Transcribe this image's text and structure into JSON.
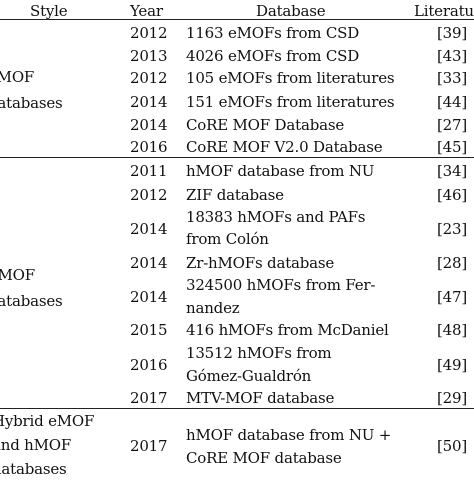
{
  "header": {
    "style": "Style",
    "year": "Year",
    "database": "Database",
    "literature": "Literature"
  },
  "groups": [
    {
      "style_lines": [
        "eMOF",
        "databases"
      ],
      "rows": [
        {
          "year": "2012",
          "db": [
            "1163 eMOFs from CSD"
          ],
          "ref": "[39]"
        },
        {
          "year": "2013",
          "db": [
            "4026 eMOFs from CSD"
          ],
          "ref": "[43]"
        },
        {
          "year": "2012",
          "db": [
            "105 eMOFs from literatures"
          ],
          "ref": "[33]"
        },
        {
          "year": "2014",
          "db": [
            "151 eMOFs from literatures"
          ],
          "ref": "[44]"
        },
        {
          "year": "2014",
          "db": [
            "CoRE MOF Database"
          ],
          "ref": "[27]"
        },
        {
          "year": "2016",
          "db": [
            "CoRE MOF V2.0 Database"
          ],
          "ref": "[45]"
        }
      ]
    },
    {
      "style_lines": [
        "hMOF",
        "databases"
      ],
      "rows": [
        {
          "year": "2011",
          "db": [
            "hMOF database from NU"
          ],
          "ref": "[34]"
        },
        {
          "year": "2012",
          "db": [
            "ZIF database"
          ],
          "ref": "[46]"
        },
        {
          "year": "2014",
          "db": [
            "18383 hMOFs and PAFs",
            "from Colón"
          ],
          "ref": "[23]"
        },
        {
          "year": "2014",
          "db": [
            "Zr-hMOFs database"
          ],
          "ref": "[28]"
        },
        {
          "year": "2014",
          "db": [
            "324500 hMOFs from Fer-",
            "nandez"
          ],
          "ref": "[47]"
        },
        {
          "year": "2015",
          "db": [
            "416 hMOFs from McDaniel"
          ],
          "ref": "[48]"
        },
        {
          "year": "2016",
          "db": [
            "13512 hMOFs from",
            "Gómez-Gualdrón"
          ],
          "ref": "[49]"
        },
        {
          "year": "2017",
          "db": [
            "MTV-MOF database"
          ],
          "ref": "[29]"
        }
      ]
    },
    {
      "style_lines": [
        "Hybrid eMOF",
        "and hMOF",
        "databases"
      ],
      "rows": [
        {
          "year": "2017",
          "db": [
            "hMOF database from NU +",
            "CoRE MOF database"
          ],
          "ref": "[50]"
        }
      ]
    }
  ]
}
